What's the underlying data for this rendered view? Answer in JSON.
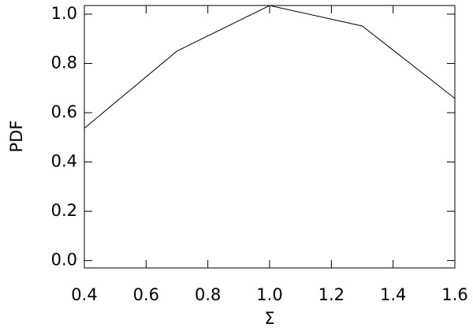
{
  "chart_data": {
    "type": "line",
    "x_label": "Σ",
    "y_label": "PDF",
    "x": [
      0.4,
      0.7,
      1.0,
      1.3,
      1.6
    ],
    "series": [
      {
        "name": "PDF",
        "color": "#000000",
        "values": [
          0.537,
          0.85,
          1.035,
          0.952,
          0.658
        ]
      }
    ],
    "xlim": [
      0.4,
      1.6
    ],
    "xticks": [
      0.4,
      0.6,
      0.8,
      {
        "value": 1,
        "label": "1.0"
      },
      1.2,
      1.4,
      1.6
    ],
    "ylim": [
      -0.03,
      1.035
    ],
    "yticks": [
      {
        "value": 0,
        "label": "0.0"
      },
      0.2,
      0.4,
      0.6,
      0.8,
      {
        "value": 1,
        "label": "1.0"
      }
    ],
    "grid": false
  }
}
